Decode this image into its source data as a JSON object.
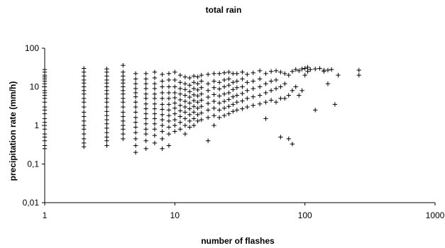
{
  "chart_data": {
    "type": "scatter",
    "title": "total rain",
    "xlabel": "number of flashes",
    "ylabel": "precipitation rate (mm/h)",
    "x_scale": "log",
    "y_scale": "log",
    "xlim": [
      1,
      1000
    ],
    "ylim": [
      0.01,
      100
    ],
    "x_ticks": [
      "1",
      "10",
      "100",
      "1000"
    ],
    "y_ticks": [
      "0,01",
      "0,1",
      "1",
      "10",
      "100"
    ],
    "marker": "plus",
    "colors": {
      "marker": "#000000",
      "axes": "#000000",
      "background": "#ffffff"
    },
    "grid": false,
    "legend": "none",
    "x": [
      1,
      1,
      1,
      1,
      1,
      1,
      1,
      1,
      1,
      1,
      1,
      1,
      1,
      1,
      1,
      1,
      1,
      1,
      1,
      1,
      1,
      1,
      1,
      1,
      1,
      2,
      2,
      2,
      2,
      2,
      2,
      2,
      2,
      2,
      2,
      2,
      2,
      2,
      2,
      2,
      2,
      2,
      2,
      2,
      2,
      3,
      3,
      3,
      3,
      3,
      3,
      3,
      3,
      3,
      3,
      3,
      3,
      3,
      3,
      3,
      3,
      3,
      3,
      3,
      3,
      4,
      4,
      4,
      4,
      4,
      4,
      4,
      4,
      4,
      4,
      4,
      4,
      4,
      4,
      4,
      4,
      4,
      4,
      5,
      5,
      5,
      5,
      5,
      5,
      5,
      5,
      5,
      5,
      5,
      5,
      5,
      5,
      5,
      5,
      6,
      6,
      6,
      6,
      6,
      6,
      6,
      6,
      6,
      6,
      6,
      6,
      6,
      6,
      6,
      7,
      7,
      7,
      7,
      7,
      7,
      7,
      7,
      7,
      7,
      7,
      7,
      7,
      7,
      8,
      8,
      8,
      8,
      8,
      8,
      8,
      8,
      8,
      8,
      8,
      8,
      8,
      9,
      9,
      9,
      9,
      9,
      9,
      9,
      9,
      9,
      9,
      9,
      9,
      10,
      10,
      10,
      10,
      10,
      10,
      10,
      10,
      10,
      10,
      10,
      11,
      11,
      11,
      11,
      11,
      11,
      11,
      11,
      11,
      11,
      12,
      12,
      12,
      12,
      12,
      12,
      12,
      12,
      12,
      12,
      13,
      13,
      13,
      13,
      13,
      13,
      13,
      13,
      13,
      14,
      14,
      14,
      14,
      14,
      14,
      14,
      14,
      14,
      15,
      15,
      15,
      15,
      15,
      15,
      15,
      15,
      16,
      16,
      16,
      16,
      16,
      16,
      16,
      16,
      18,
      18,
      18,
      18,
      18,
      18,
      18,
      18,
      20,
      20,
      20,
      20,
      20,
      20,
      20,
      20,
      22,
      22,
      22,
      22,
      22,
      22,
      22,
      24,
      24,
      24,
      24,
      24,
      24,
      24,
      26,
      26,
      26,
      26,
      26,
      26,
      26,
      28,
      28,
      28,
      28,
      28,
      28,
      30,
      30,
      30,
      30,
      30,
      30,
      33,
      33,
      33,
      33,
      33,
      33,
      36,
      36,
      36,
      36,
      36,
      40,
      40,
      40,
      40,
      40,
      45,
      45,
      45,
      45,
      45,
      50,
      50,
      50,
      50,
      50,
      55,
      55,
      55,
      55,
      60,
      60,
      60,
      60,
      65,
      65,
      65,
      65,
      70,
      70,
      70,
      75,
      75,
      75,
      80,
      80,
      80,
      85,
      85,
      90,
      90,
      95,
      95,
      100,
      100,
      105,
      105,
      110,
      120,
      120,
      130,
      140,
      140,
      150,
      150,
      160,
      170,
      180,
      260,
      260
    ],
    "y": [
      0.25,
      0.3,
      0.4,
      0.5,
      0.6,
      0.8,
      1,
      1.2,
      1.5,
      2,
      2.5,
      3,
      4,
      5,
      6,
      7,
      8,
      10,
      12,
      14,
      16,
      18,
      20,
      24,
      28,
      0.28,
      0.35,
      0.45,
      0.6,
      0.8,
      1,
      1.3,
      1.7,
      2.2,
      3,
      4,
      5,
      6.5,
      8,
      10,
      12.5,
      15,
      19,
      24,
      30,
      0.3,
      0.4,
      0.5,
      0.65,
      0.85,
      1.1,
      1.4,
      1.8,
      2.3,
      3,
      4,
      5,
      6.5,
      8,
      10,
      12.5,
      15,
      19,
      24,
      29,
      0.45,
      0.6,
      0.8,
      1,
      1.3,
      1.7,
      2.2,
      3,
      4,
      5,
      6.5,
      8,
      10,
      12.5,
      15,
      19,
      24,
      36,
      0.2,
      0.3,
      0.45,
      0.65,
      0.9,
      1.2,
      1.6,
      2.2,
      3,
      4,
      5.5,
      7,
      9,
      12,
      16,
      22,
      0.25,
      0.4,
      0.6,
      0.8,
      1.1,
      1.5,
      2,
      2.7,
      3.6,
      5,
      6.5,
      9,
      12,
      16,
      22,
      0.35,
      0.55,
      0.8,
      1.1,
      1.5,
      2,
      2.7,
      3.6,
      5,
      6.5,
      9,
      12,
      17,
      24,
      0.25,
      0.45,
      0.7,
      1,
      1.4,
      1.9,
      2.6,
      3.5,
      5,
      7,
      10,
      14,
      21,
      0.3,
      0.6,
      0.9,
      1.3,
      1.8,
      2.5,
      3.5,
      5,
      7,
      10,
      15,
      22,
      0.7,
      1,
      1.4,
      2,
      2.8,
      3.8,
      5.2,
      7,
      10,
      15,
      24,
      0.8,
      1.2,
      1.7,
      2.4,
      3.3,
      4.6,
      6.5,
      9,
      13,
      20,
      0.6,
      1,
      1.5,
      2.2,
      3,
      4.2,
      6,
      8.5,
      12,
      18,
      0.9,
      1.3,
      1.9,
      2.7,
      3.8,
      5.4,
      7.5,
      11,
      17,
      1,
      1.5,
      2.2,
      3.1,
      4.4,
      6.2,
      9,
      13,
      19,
      1.3,
      1.9,
      2.8,
      4,
      5.8,
      8.3,
      12,
      18,
      1.4,
      2.1,
      3.1,
      4.5,
      6.5,
      9.5,
      14,
      20,
      0.4,
      1.6,
      2.5,
      3.7,
      5.4,
      8,
      12,
      21,
      1,
      1.8,
      2.8,
      4.2,
      6.3,
      9.5,
      14,
      22,
      1.6,
      2.5,
      3.8,
      5.8,
      8.8,
      13,
      22,
      1.8,
      2.8,
      4.2,
      6.5,
      10,
      15,
      23,
      2,
      3.1,
      4.7,
      7,
      11,
      16,
      24,
      2.3,
      3.5,
      5.5,
      8.5,
      13,
      22,
      2.5,
      4,
      6,
      9.5,
      14,
      22,
      2.7,
      4.3,
      6.7,
      10,
      16,
      24,
      3,
      5,
      8,
      13,
      21,
      3.3,
      5.5,
      9,
      14,
      23,
      3.6,
      6,
      10,
      16,
      26,
      1.5,
      4,
      7,
      12,
      22,
      4.5,
      8,
      14,
      25,
      4,
      9,
      15,
      26,
      0.5,
      5,
      10,
      24,
      5,
      12,
      22,
      0.45,
      6,
      20,
      0.33,
      8,
      25,
      10,
      28,
      6,
      26,
      8,
      29,
      20,
      30,
      25,
      32,
      28,
      2.5,
      29,
      30,
      25,
      27,
      12,
      27,
      28,
      3.5,
      20,
      20,
      27
    ]
  }
}
